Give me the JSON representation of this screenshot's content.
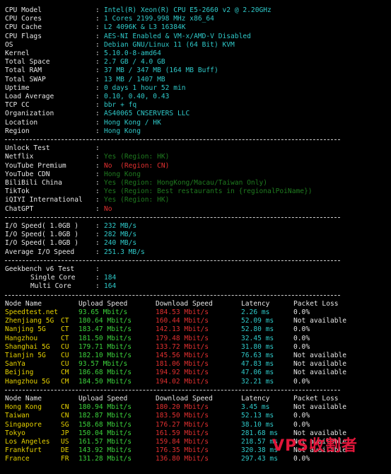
{
  "system": [
    {
      "label": "CPU Model",
      "value": "Intel(R) Xeon(R) CPU E5-2660 v2 @ 2.20GHz"
    },
    {
      "label": "CPU Cores",
      "value": "1 Cores 2199.998 MHz x86_64"
    },
    {
      "label": "CPU Cache",
      "value": "L2 4096K & L3 16384K"
    },
    {
      "label": "CPU Flags",
      "value": "AES-NI Enabled & VM-x/AMD-V Disabled"
    },
    {
      "label": "OS",
      "value": "Debian GNU/Linux 11 (64 Bit) KVM"
    },
    {
      "label": "Kernel",
      "value": "5.10.0-8-amd64"
    },
    {
      "label": "Total Space",
      "value": "2.7 GB / 4.0 GB"
    },
    {
      "label": "Total RAM",
      "value": "37 MB / 347 MB (164 MB Buff)"
    },
    {
      "label": "Total SWAP",
      "value": "13 MB / 1407 MB"
    },
    {
      "label": "Uptime",
      "value": "0 days 1 hour 52 min"
    },
    {
      "label": "Load Average",
      "value": "0.10, 0.40, 0.43"
    },
    {
      "label": "TCP CC",
      "value": "bbr + fq"
    },
    {
      "label": "Organization",
      "value": "AS40065 CNSERVERS LLC"
    },
    {
      "label": "Location",
      "value": "Hong Kong / HK"
    },
    {
      "label": "Region",
      "value": "Hong Kong"
    }
  ],
  "unlock": {
    "title": "Unlock Test",
    "items": [
      {
        "label": "Netflix",
        "value": "Yes (Region: HK)",
        "status": "yes"
      },
      {
        "label": "YouTube Premium",
        "value": "No  (Region: CN)",
        "status": "no"
      },
      {
        "label": "YouTube CDN",
        "value": "Hong Kong",
        "status": "yes"
      },
      {
        "label": "BiliBili China",
        "value": "Yes (Region: HongKong/Macau/Taiwan Only)",
        "status": "yes"
      },
      {
        "label": "TikTok",
        "value": "Yes (Region: Best restaurants in {regionalPoiName})",
        "status": "yes"
      },
      {
        "label": "iQIYI International",
        "value": "Yes (Region: HK)",
        "status": "yes"
      },
      {
        "label": "ChatGPT",
        "value": "No",
        "status": "no"
      }
    ]
  },
  "io": [
    {
      "label": "I/O Speed( 1.0GB )",
      "value": "232 MB/s"
    },
    {
      "label": "I/O Speed( 1.0GB )",
      "value": "282 MB/s"
    },
    {
      "label": "I/O Speed( 1.0GB )",
      "value": "240 MB/s"
    },
    {
      "label": "Average I/O Speed",
      "value": "251.3 MB/s"
    }
  ],
  "geekbench": {
    "title": "Geekbench v6 Test",
    "single_label": "Single Core",
    "single_value": "184",
    "multi_label": "Multi Core",
    "multi_value": "164"
  },
  "speed_headers": {
    "node": "Node Name",
    "upload": "Upload Speed",
    "download": "Download Speed",
    "latency": "Latency",
    "loss": "Packet Loss"
  },
  "speed_cn": [
    {
      "name": "Speedtest.net",
      "isp": "",
      "up": "93.65 Mbit/s",
      "down": "184.53 Mbit/s",
      "lat": "2.26 ms",
      "loss": "0.0%"
    },
    {
      "name": "Zhenjiang 5G",
      "isp": "CT",
      "up": "180.64 Mbit/s",
      "down": "160.44 Mbit/s",
      "lat": "52.09 ms",
      "loss": "Not available"
    },
    {
      "name": "Nanjing 5G",
      "isp": "CT",
      "up": "183.47 Mbit/s",
      "down": "142.13 Mbit/s",
      "lat": "52.80 ms",
      "loss": "0.0%"
    },
    {
      "name": "Hangzhou",
      "isp": "CT",
      "up": "181.50 Mbit/s",
      "down": "179.48 Mbit/s",
      "lat": "32.45 ms",
      "loss": "0.0%"
    },
    {
      "name": "Shanghai 5G",
      "isp": "CU",
      "up": "179.71 Mbit/s",
      "down": "133.72 Mbit/s",
      "lat": "31.80 ms",
      "loss": "0.0%"
    },
    {
      "name": "Tianjin 5G",
      "isp": "CU",
      "up": "182.10 Mbit/s",
      "down": "145.56 Mbit/s",
      "lat": "76.63 ms",
      "loss": "Not available"
    },
    {
      "name": "SanYa",
      "isp": "CU",
      "up": "93.57 Mbit/s",
      "down": "181.06 Mbit/s",
      "lat": "47.83 ms",
      "loss": "Not available"
    },
    {
      "name": "Beijing",
      "isp": "CM",
      "up": "186.68 Mbit/s",
      "down": "194.92 Mbit/s",
      "lat": "47.06 ms",
      "loss": "Not available"
    },
    {
      "name": "Hangzhou 5G",
      "isp": "CM",
      "up": "184.50 Mbit/s",
      "down": "194.02 Mbit/s",
      "lat": "32.21 ms",
      "loss": "0.0%"
    }
  ],
  "speed_global": [
    {
      "name": "Hong Kong",
      "isp": "CN",
      "up": "180.94 Mbit/s",
      "down": "180.20 Mbit/s",
      "lat": "3.45 ms",
      "loss": "Not available"
    },
    {
      "name": "Taiwan",
      "isp": "CN",
      "up": "182.87 Mbit/s",
      "down": "183.50 Mbit/s",
      "lat": "52.13 ms",
      "loss": "0.0%"
    },
    {
      "name": "Singapore",
      "isp": "SG",
      "up": "158.68 Mbit/s",
      "down": "176.27 Mbit/s",
      "lat": "38.10 ms",
      "loss": "0.0%"
    },
    {
      "name": "Tokyo",
      "isp": "JP",
      "up": "150.04 Mbit/s",
      "down": "161.59 Mbit/s",
      "lat": "281.68 ms",
      "loss": "Not available"
    },
    {
      "name": "Los Angeles",
      "isp": "US",
      "up": "161.57 Mbit/s",
      "down": "159.84 Mbit/s",
      "lat": "218.57 ms",
      "loss": "Not available"
    },
    {
      "name": "Frankfurt",
      "isp": "DE",
      "up": "143.92 Mbit/s",
      "down": "176.35 Mbit/s",
      "lat": "320.38 ms",
      "loss": "Not available"
    },
    {
      "name": "France",
      "isp": "FR",
      "up": "131.28 Mbit/s",
      "down": "136.80 Mbit/s",
      "lat": "297.43 ms",
      "loss": "0.0%"
    }
  ],
  "watermark": "VPS收割者",
  "colors": {
    "label": "#e6e6e6",
    "value": "#2fc9c9",
    "yes": "#1f7a1f",
    "no": "#e23030",
    "upload": "#3cd23c",
    "download": "#e23030",
    "latency": "#2fc9c9",
    "node": "#e6d200"
  }
}
